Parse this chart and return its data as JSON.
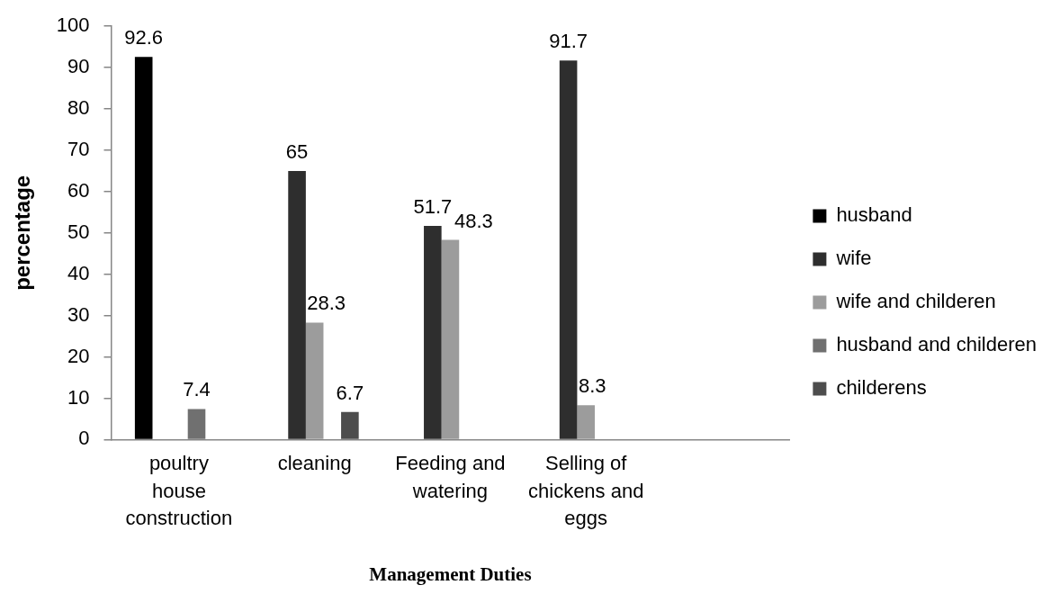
{
  "chart_data": {
    "type": "bar",
    "xlabel": "Management Duties",
    "ylabel": "percentage",
    "categories": [
      "poultry house construction",
      "cleaning",
      "Feeding and watering",
      "Selling of chickens and eggs",
      null
    ],
    "series": [
      {
        "name": "husband",
        "color": "#000000",
        "values": [
          92.6,
          null,
          null,
          null,
          null
        ]
      },
      {
        "name": "wife",
        "color": "#2e2e2e",
        "values": [
          null,
          65,
          51.7,
          91.7,
          null
        ]
      },
      {
        "name": "wife and childeren",
        "color": "#9c9c9c",
        "values": [
          null,
          28.3,
          48.3,
          8.3,
          null
        ]
      },
      {
        "name": "husband and childeren",
        "color": "#707070",
        "values": [
          7.4,
          null,
          null,
          null,
          null
        ]
      },
      {
        "name": "childerens",
        "color": "#4d4d4d",
        "values": [
          null,
          6.7,
          null,
          null,
          null
        ]
      }
    ],
    "ylim": [
      0,
      100
    ],
    "yticks": [
      0,
      10,
      20,
      30,
      40,
      50,
      60,
      70,
      80,
      90,
      100
    ],
    "grid": false,
    "legend": "right",
    "data_labels": true
  }
}
